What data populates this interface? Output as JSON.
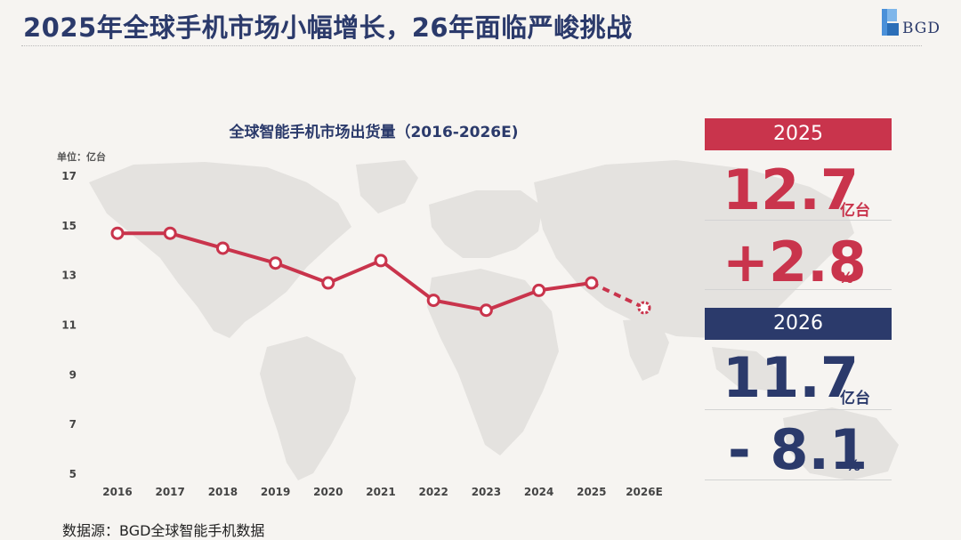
{
  "page": {
    "title": "2025年全球手机市场小幅增长，26年面临严峻挑战",
    "logo_text": "BGD",
    "source": "数据源：BGD全球智能手机数据"
  },
  "colors": {
    "accent_red": "#c9344c",
    "accent_navy": "#2b3a6b",
    "background": "#f6f4f1",
    "map": "#e4e2df"
  },
  "chart_data": {
    "type": "line",
    "title": "全球智能手机市场出货量（2016-2026E)",
    "unit_label": "单位：亿台",
    "categories": [
      "2016",
      "2017",
      "2018",
      "2019",
      "2020",
      "2021",
      "2022",
      "2023",
      "2024",
      "2025",
      "2026E"
    ],
    "values": [
      14.7,
      14.7,
      14.1,
      13.5,
      12.7,
      13.6,
      12.0,
      11.6,
      12.4,
      12.7,
      11.7
    ],
    "estimated_from_index": 10,
    "ylim": [
      5,
      17
    ],
    "yticks": [
      5,
      7,
      9,
      11,
      13,
      15,
      17
    ],
    "grid": false,
    "line_color": "#c9344c"
  },
  "stats": {
    "y2025": {
      "year": "2025",
      "shipment": "12.7",
      "shipment_unit": "亿台",
      "growth": "+2.8",
      "growth_unit": "%"
    },
    "y2026": {
      "year": "2026",
      "shipment": "11.7",
      "shipment_unit": "亿台",
      "growth": "- 8.1",
      "growth_unit": "%"
    }
  }
}
